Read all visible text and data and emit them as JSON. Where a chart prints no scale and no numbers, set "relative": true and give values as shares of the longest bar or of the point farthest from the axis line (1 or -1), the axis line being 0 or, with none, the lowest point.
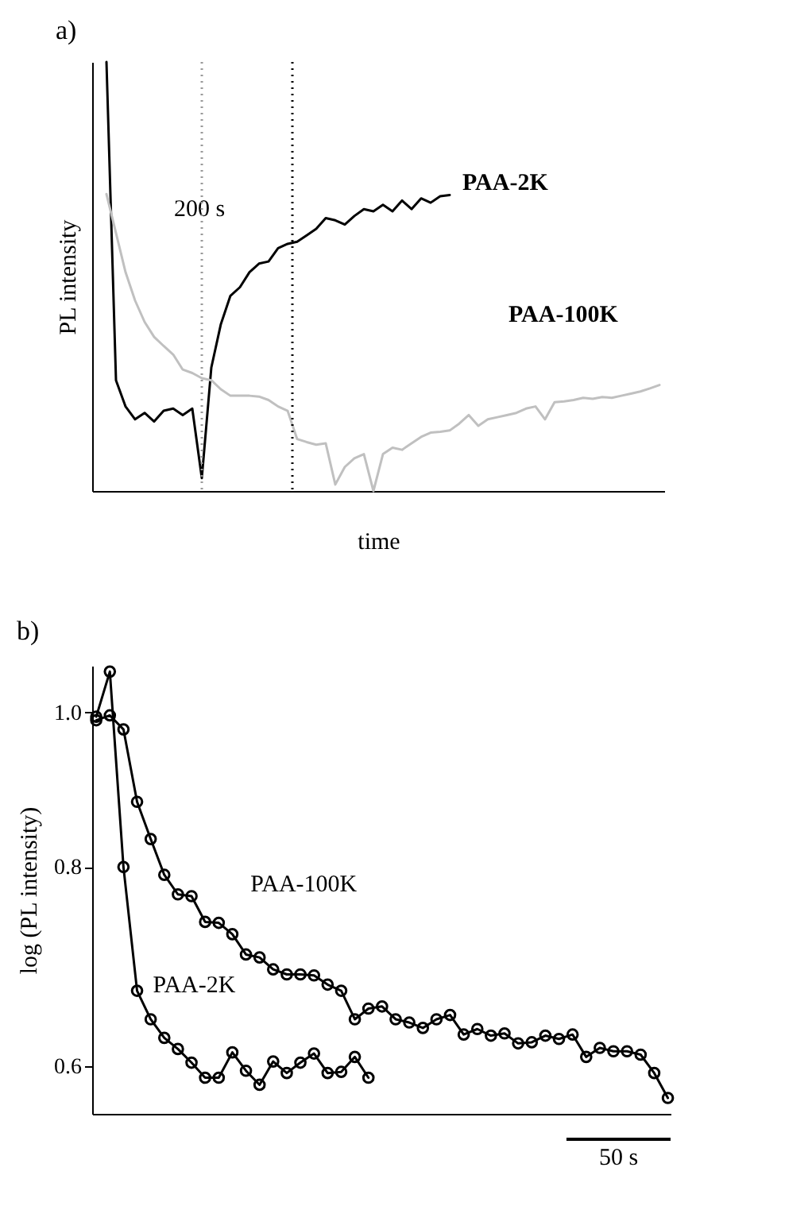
{
  "chart_data": [
    {
      "type": "line",
      "title": "a)",
      "xlabel": "time",
      "ylabel": "PL intensity",
      "relative": true,
      "marker": "none",
      "line_style": "solid",
      "categories": [
        null,
        null,
        null,
        null,
        null,
        null,
        null,
        null,
        null,
        null,
        null,
        null,
        null,
        null,
        null,
        null,
        null,
        null,
        null,
        null,
        null,
        null,
        null,
        null,
        null,
        null,
        null,
        null,
        null,
        null,
        null,
        null,
        null,
        null,
        null,
        null,
        null,
        null,
        null,
        null,
        null,
        null,
        null,
        null,
        null,
        null,
        null,
        null,
        null,
        null,
        null,
        null,
        null,
        null,
        null,
        null,
        null,
        null,
        null
      ],
      "annotations": [
        "200 s"
      ],
      "series": [
        {
          "name": "PAA-2K",
          "color": "#000000",
          "values": [
            1.0,
            0.258,
            0.197,
            0.167,
            0.182,
            0.162,
            0.187,
            0.192,
            0.177,
            0.192,
            0.03,
            0.288,
            0.389,
            0.455,
            0.475,
            0.51,
            0.53,
            0.535,
            0.566,
            0.576,
            0.581,
            0.596,
            0.611,
            0.636,
            0.631,
            0.621,
            0.641,
            0.657,
            0.652,
            0.667,
            0.652,
            0.677,
            0.657,
            0.682,
            0.672,
            0.687,
            0.69,
            null,
            null,
            null,
            null,
            null,
            null,
            null,
            null,
            null,
            null,
            null,
            null,
            null,
            null,
            null,
            null,
            null,
            null,
            null,
            null,
            null,
            null
          ]
        },
        {
          "name": "PAA-100K",
          "color": "#c0c0c0",
          "values": [
            0.692,
            0.601,
            0.51,
            0.444,
            0.394,
            0.359,
            0.338,
            0.318,
            0.283,
            0.275,
            0.263,
            0.258,
            0.237,
            0.222,
            0.222,
            0.222,
            0.22,
            0.212,
            0.197,
            0.187,
            0.121,
            0.114,
            0.108,
            0.111,
            0.015,
            0.056,
            0.076,
            0.086,
            0.0,
            0.086,
            0.101,
            0.096,
            0.111,
            0.126,
            0.136,
            0.138,
            0.141,
            0.157,
            0.177,
            0.152,
            0.167,
            0.172,
            0.177,
            0.182,
            0.192,
            0.197,
            0.167,
            0.207,
            0.209,
            0.212,
            0.217,
            0.215,
            0.219,
            0.217,
            0.222,
            0.227,
            0.232,
            0.239,
            0.247
          ]
        }
      ]
    },
    {
      "type": "line",
      "title": "b)",
      "ylabel": "log (PL intensity)",
      "log": "y",
      "ylim": [
        0.56,
        1.07
      ],
      "yticks": [
        0.6,
        0.8,
        {
          "value": 1,
          "label": "1.0"
        }
      ],
      "tick_labels": "y",
      "marker": "circle",
      "line_style": "solid",
      "categories": [
        null,
        null,
        null,
        null,
        null,
        null,
        null,
        null,
        null,
        null,
        null,
        null,
        null,
        null,
        null,
        null,
        null,
        null,
        null,
        null,
        null,
        null,
        null,
        null,
        null,
        null,
        null,
        null,
        null,
        null,
        null,
        null,
        null,
        null,
        null,
        null,
        null,
        null,
        null,
        null,
        null,
        null,
        null
      ],
      "annotations": [
        "50 s"
      ],
      "series": [
        {
          "name": "PAA-100K",
          "color": "#000000",
          "values": [
            0.989,
            0.996,
            0.976,
            0.879,
            0.833,
            0.791,
            0.769,
            0.767,
            0.739,
            0.738,
            0.726,
            0.705,
            0.702,
            0.69,
            0.685,
            0.685,
            0.684,
            0.675,
            0.669,
            0.642,
            0.652,
            0.654,
            0.642,
            0.639,
            0.634,
            0.642,
            0.646,
            0.628,
            0.633,
            0.627,
            0.629,
            0.62,
            0.621,
            0.627,
            0.624,
            0.628,
            0.608,
            0.616,
            0.613,
            0.613,
            0.61,
            0.594,
            0.573
          ]
        },
        {
          "name": "PAA-2K",
          "color": "#000000",
          "values": [
            0.994,
            1.061,
            0.8,
            0.669,
            0.642,
            0.625,
            0.615,
            0.603,
            0.59,
            0.59,
            0.612,
            0.596,
            0.584,
            0.604,
            0.594,
            0.603,
            0.611,
            0.594,
            0.595,
            0.608,
            0.59,
            null,
            null,
            null,
            null,
            null,
            null,
            null,
            null,
            null,
            null,
            null,
            null,
            null,
            null,
            null,
            null,
            null,
            null,
            null,
            null,
            null,
            null
          ]
        }
      ]
    }
  ]
}
